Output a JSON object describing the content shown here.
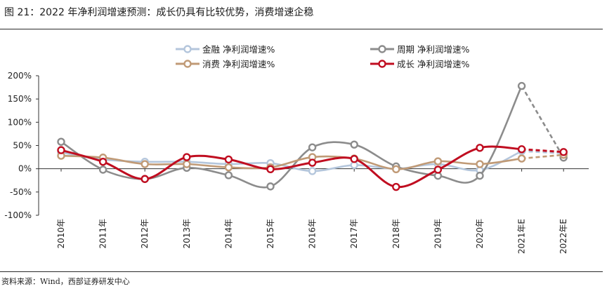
{
  "title": "图 21：2022 年净利润增速预测：成长仍具有比较优势，消费增速企稳",
  "source": "资料来源：Wind，西部证券研发中心",
  "chart_data": {
    "type": "line",
    "categories": [
      "2010年",
      "2011年",
      "2012年",
      "2013年",
      "2014年",
      "2015年",
      "2016年",
      "2017年",
      "2018年",
      "2019年",
      "2020年",
      "2021年E",
      "2022年E"
    ],
    "ylim": [
      -100,
      200
    ],
    "yticks": [
      200,
      150,
      100,
      50,
      0,
      -50,
      -100
    ],
    "ytick_labels": [
      "200%",
      "150%",
      "100%",
      "50%",
      "0%",
      "-50%",
      "-100%"
    ],
    "forecast_start_index": 11,
    "series": [
      {
        "name": "金融  净利润增速%",
        "color": "#b4c6dc",
        "values": [
          35,
          20,
          15,
          15,
          10,
          12,
          -5,
          8,
          0,
          10,
          -3,
          38,
          33
        ]
      },
      {
        "name": "周期  净利润增速%",
        "color": "#8c8c8c",
        "values": [
          58,
          -2,
          -22,
          2,
          -14,
          -38,
          46,
          52,
          5,
          -15,
          -15,
          178,
          24
        ]
      },
      {
        "name": "消费  净利润增速%",
        "color": "#c09a76",
        "values": [
          28,
          24,
          10,
          10,
          3,
          3,
          25,
          22,
          -1,
          16,
          10,
          22,
          30
        ]
      },
      {
        "name": "成长  净利润增速%",
        "color": "#c00d20",
        "values": [
          40,
          15,
          -22,
          25,
          20,
          -1,
          13,
          21,
          -39,
          -2,
          45,
          42,
          36
        ]
      }
    ]
  }
}
